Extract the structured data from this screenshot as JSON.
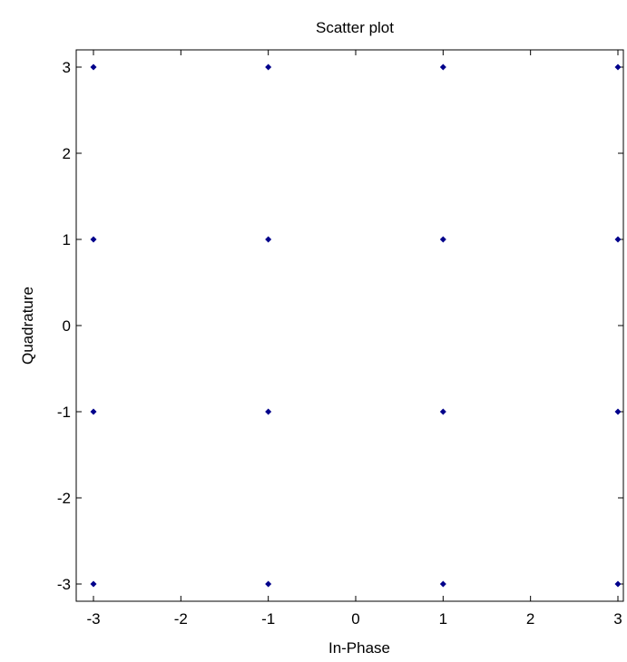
{
  "chart_data": {
    "type": "scatter",
    "title": "Scatter plot",
    "xlabel": "In-Phase",
    "ylabel": "Quadrature",
    "xlim": [
      -3,
      3
    ],
    "ylim": [
      -3,
      3
    ],
    "xticks": [
      -3,
      -2,
      -1,
      0,
      1,
      2,
      3
    ],
    "yticks": [
      -3,
      -2,
      -1,
      0,
      1,
      2,
      3
    ],
    "grid": false,
    "marker_color": "#00008b",
    "points": [
      {
        "x": -3,
        "y": 3
      },
      {
        "x": -1,
        "y": 3
      },
      {
        "x": 1,
        "y": 3
      },
      {
        "x": 3,
        "y": 3
      },
      {
        "x": -3,
        "y": 1
      },
      {
        "x": -1,
        "y": 1
      },
      {
        "x": 1,
        "y": 1
      },
      {
        "x": 3,
        "y": 1
      },
      {
        "x": -3,
        "y": -1
      },
      {
        "x": -1,
        "y": -1
      },
      {
        "x": 1,
        "y": -1
      },
      {
        "x": 3,
        "y": -1
      },
      {
        "x": -3,
        "y": -3
      },
      {
        "x": -1,
        "y": -3
      },
      {
        "x": 1,
        "y": -3
      },
      {
        "x": 3,
        "y": -3
      }
    ]
  }
}
